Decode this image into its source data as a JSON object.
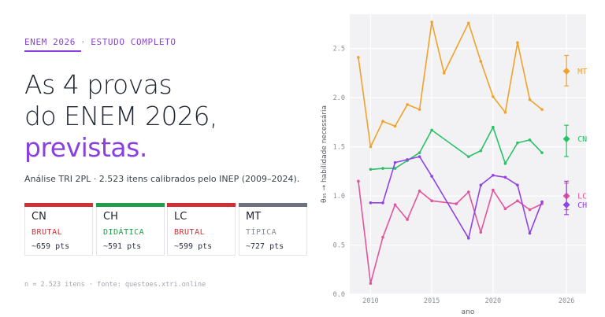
{
  "header": {
    "tag": "ENEM 2026",
    "tag_sep": "·",
    "tag_right": "ESTUDO COMPLETO",
    "headline_line1": "As 4 provas",
    "headline_line2": "do ENEM 2026,",
    "headline_line3": "previstas.",
    "subtitle": "Análise TRI 2PL · 2.523 itens calibrados pelo INEP (2009–2024)."
  },
  "cards": [
    {
      "code": "CN",
      "kind": "BRUTAL",
      "pts": "~659 pts",
      "bar_color": "#d22f35",
      "kind_color": "#d22f35"
    },
    {
      "code": "CH",
      "kind": "DIDÁTICA",
      "pts": "~591 pts",
      "bar_color": "#1f9d4a",
      "kind_color": "#1f9d4a"
    },
    {
      "code": "LC",
      "kind": "BRUTAL",
      "pts": "~599 pts",
      "bar_color": "#d22f35",
      "kind_color": "#d22f35"
    },
    {
      "code": "MT",
      "kind": "TÍPICA",
      "pts": "~727 pts",
      "bar_color": "#6e7280",
      "kind_color": "#8a8d99"
    }
  ],
  "footnote": "n = 2.523 itens  ·  fonte: questoes.xtri.online",
  "chart_data": {
    "type": "line",
    "xlabel": "ano",
    "ylabel": "θ₉₅ → habilidade necessária",
    "xlim": [
      2008.3,
      2027.6
    ],
    "ylim": [
      0,
      2.85
    ],
    "xticks": [
      2010,
      2015,
      2020,
      2026
    ],
    "yticks": [
      0.0,
      0.5,
      1.0,
      1.5,
      2.0,
      2.5
    ],
    "grid": true,
    "plot_background": "#f2f2f4",
    "series": [
      {
        "name": "MT",
        "color": "#f0a22b",
        "x": [
          2009,
          2010,
          2011,
          2012,
          2013,
          2014,
          2015,
          2016,
          2018,
          2019,
          2020,
          2021,
          2022,
          2023,
          2024
        ],
        "y": [
          2.41,
          1.5,
          1.76,
          1.71,
          1.93,
          1.88,
          2.77,
          2.25,
          2.76,
          2.37,
          2.01,
          1.85,
          2.56,
          1.98,
          1.88
        ],
        "forecast": {
          "x": 2026,
          "y": 2.27,
          "low": 2.12,
          "high": 2.43
        }
      },
      {
        "name": "CN",
        "color": "#27c267",
        "x": [
          2010,
          2011,
          2012,
          2013,
          2014,
          2015,
          2018,
          2019,
          2020,
          2021,
          2022,
          2023,
          2024
        ],
        "y": [
          1.27,
          1.28,
          1.28,
          1.36,
          1.44,
          1.67,
          1.4,
          1.46,
          1.7,
          1.33,
          1.54,
          1.57,
          1.44
        ],
        "forecast": {
          "x": 2026,
          "y": 1.58,
          "low": 1.4,
          "high": 1.72
        }
      },
      {
        "name": "LC",
        "color": "#e2549b",
        "x": [
          2009,
          2010,
          2011,
          2012,
          2013,
          2014,
          2015,
          2017,
          2018,
          2019,
          2020,
          2021,
          2022,
          2023,
          2024
        ],
        "y": [
          1.15,
          0.11,
          0.58,
          0.91,
          0.76,
          1.05,
          0.95,
          0.92,
          1.04,
          0.63,
          1.06,
          0.87,
          0.95,
          0.86,
          0.92
        ],
        "forecast": {
          "x": 2026,
          "y": 1.0,
          "low": 0.86,
          "high": 1.13
        }
      },
      {
        "name": "CH",
        "color": "#9043e6",
        "x": [
          2010,
          2011,
          2012,
          2013,
          2014,
          2015,
          2018,
          2019,
          2020,
          2021,
          2022,
          2023,
          2024
        ],
        "y": [
          0.93,
          0.93,
          1.34,
          1.37,
          1.4,
          1.2,
          0.57,
          1.11,
          1.21,
          1.19,
          1.11,
          0.62,
          0.94
        ],
        "forecast": {
          "x": 2026,
          "y": 0.91,
          "low": 0.81,
          "high": 1.15
        }
      }
    ]
  }
}
